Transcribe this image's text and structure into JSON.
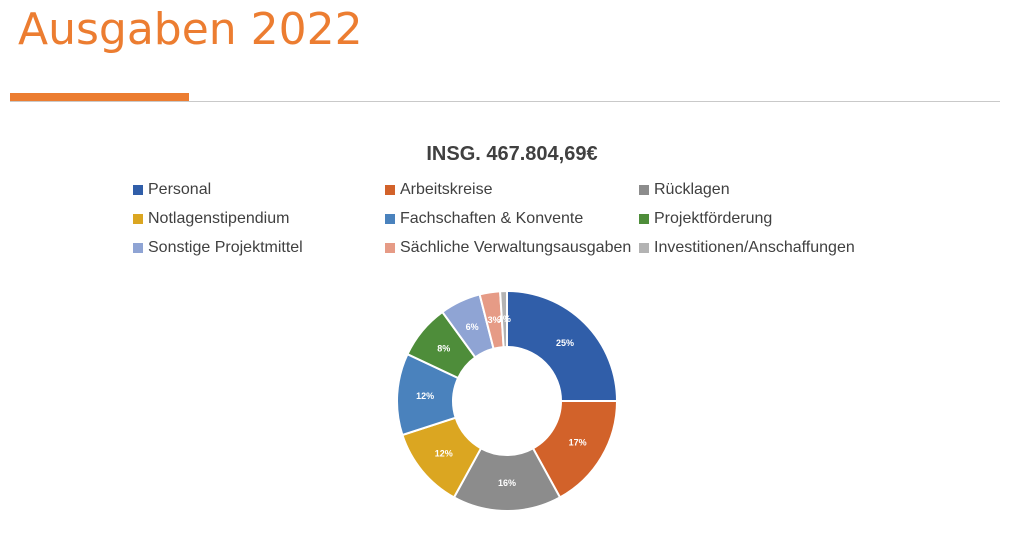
{
  "slide": {
    "title": "Ausgaben 2022"
  },
  "chart_data": {
    "type": "pie",
    "subtype": "donut",
    "title": "INSG. 467.804,69€",
    "legend_position": "top",
    "data_labels_shown": true,
    "categories": [
      "Personal",
      "Arbeitskreise",
      "Rücklagen",
      "Notlagenstipendium",
      "Fachschaften & Konvente",
      "Projektförderung",
      "Sonstige Projektmittel",
      "Sächliche Verwaltungsausgaben",
      "Investitionen/Anschaffungen"
    ],
    "values": [
      25,
      17,
      16,
      12,
      12,
      8,
      6,
      3,
      1
    ],
    "labels": [
      "25%",
      "17%",
      "16%",
      "12%",
      "12%",
      "8%",
      "6%",
      "3%",
      "1%"
    ],
    "colors": [
      "#305ea9",
      "#d2622a",
      "#8c8c8c",
      "#dba621",
      "#4a82bd",
      "#4e8d3a",
      "#8fa4d4",
      "#e69b86",
      "#b3b3b3"
    ]
  }
}
